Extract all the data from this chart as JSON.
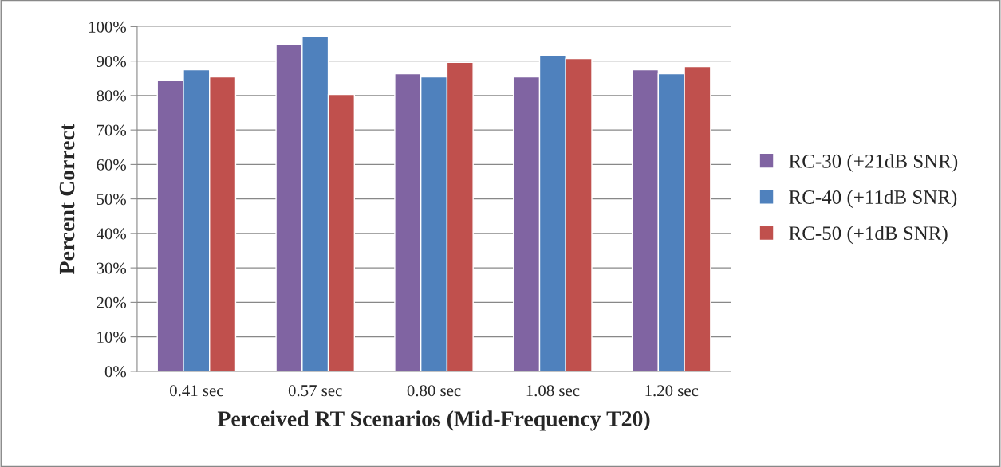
{
  "chart_data": {
    "type": "bar",
    "xlabel": "Perceived RT Scenarios (Mid-Frequency T20)",
    "ylabel": "Percent Correct",
    "categories": [
      "0.41 sec",
      "0.57 sec",
      "0.80 sec",
      "1.08 sec",
      "1.20 sec"
    ],
    "series": [
      {
        "name": "RC-30 (+21dB SNR)",
        "color": "#8064a2",
        "values": [
          84.3,
          94.7,
          86.3,
          85.4,
          87.5
        ]
      },
      {
        "name": "RC-40 (+11dB SNR)",
        "color": "#4f81bd",
        "values": [
          87.5,
          97.0,
          85.4,
          91.7,
          86.3
        ]
      },
      {
        "name": "RC-50 (+1dB SNR)",
        "color": "#c0504d",
        "values": [
          85.4,
          80.3,
          89.6,
          90.7,
          88.4
        ]
      }
    ],
    "ylim": [
      0,
      100
    ],
    "yticks": [
      {
        "value": 0,
        "label": "0%"
      },
      {
        "value": 10,
        "label": "10%"
      },
      {
        "value": 20,
        "label": "20%"
      },
      {
        "value": 30,
        "label": "30%"
      },
      {
        "value": 40,
        "label": "40%"
      },
      {
        "value": 50,
        "label": "50%"
      },
      {
        "value": 60,
        "label": "60%"
      },
      {
        "value": 70,
        "label": "70%"
      },
      {
        "value": 80,
        "label": "80%"
      },
      {
        "value": 90,
        "label": "90%"
      },
      {
        "value": 100,
        "label": "100%"
      }
    ],
    "grid": "y",
    "legend": "right"
  }
}
